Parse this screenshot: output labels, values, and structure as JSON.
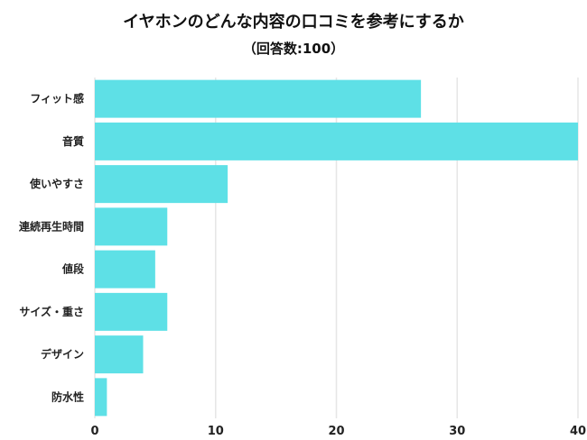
{
  "chart_data": {
    "type": "bar",
    "orientation": "horizontal",
    "title": "イヤホンのどんな内容の口コミを参考にするか",
    "subtitle": "（回答数:100）",
    "categories": [
      "フィット感",
      "音質",
      "使いやすさ",
      "連続再生時間",
      "値段",
      "サイズ・重さ",
      "デザイン",
      "防水性"
    ],
    "values": [
      27,
      40,
      11,
      6,
      5,
      6,
      4,
      1
    ],
    "xlim": [
      0,
      40
    ],
    "xticks": [
      0,
      10,
      20,
      30,
      40
    ],
    "grid": true,
    "bar_color": "#5ee0e6",
    "grid_color": "#e6e6e6"
  }
}
